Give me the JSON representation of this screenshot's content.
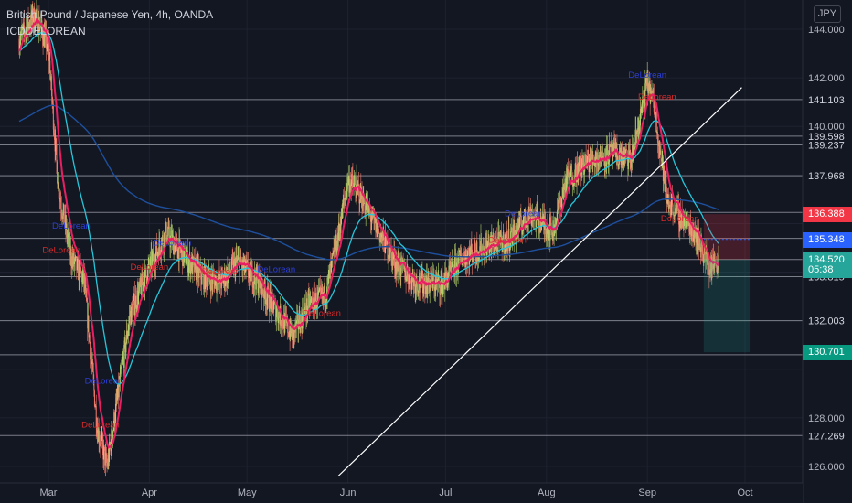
{
  "header": {
    "title": "British Pound / Japanese Yen, 4h, OANDA",
    "indicator": "ICDDELOREAN"
  },
  "currency": "JPY",
  "colors": {
    "background": "#131722",
    "grid": "#1e2230",
    "hline": "#9598a1",
    "trendline": "#ffffff",
    "ema_fast": "#e91e63",
    "ema_mid": "#26c6da",
    "ema_slow": "#1e4f9c",
    "candle_up": "#b4d26a",
    "candle_down": "#ef7a6a",
    "label_buy": "#2e3fd6",
    "label_sell": "#d62b2b"
  },
  "chart_data": {
    "type": "candlestick",
    "symbol": "GBPJPY",
    "timeframe": "4h",
    "x_ticks": [
      "Mar",
      "Apr",
      "May",
      "Jun",
      "Jul",
      "Aug",
      "Sep",
      "Oct"
    ],
    "y_ticks": [
      "144.000",
      "142.000",
      "140.000",
      "128.000",
      "126.000"
    ],
    "ylim": [
      125.6,
      145.0
    ],
    "price_path": [
      [
        "Feb 20",
        143.6
      ],
      [
        "Feb 25",
        144.6
      ],
      [
        "Mar 1",
        143.2
      ],
      [
        "Mar 4",
        137.5
      ],
      [
        "Mar 8",
        134.6
      ],
      [
        "Mar 12",
        133.6
      ],
      [
        "Mar 16",
        127.6
      ],
      [
        "Mar 19",
        126.0
      ],
      [
        "Mar 22",
        128.6
      ],
      [
        "Mar 26",
        132.2
      ],
      [
        "Apr 1",
        134.2
      ],
      [
        "Apr 6",
        135.6
      ],
      [
        "Apr 12",
        134.6
      ],
      [
        "Apr 17",
        133.8
      ],
      [
        "Apr 23",
        133.6
      ],
      [
        "Apr 28",
        134.4
      ],
      [
        "May 4",
        133.7
      ],
      [
        "May 10",
        132.4
      ],
      [
        "May 15",
        131.4
      ],
      [
        "May 20",
        132.7
      ],
      [
        "May 25",
        133.0
      ],
      [
        "May 29",
        135.5
      ],
      [
        "Jun 1",
        137.8
      ],
      [
        "Jun 4",
        137.4
      ],
      [
        "Jun 9",
        136.0
      ],
      [
        "Jun 16",
        134.3
      ],
      [
        "Jun 22",
        133.6
      ],
      [
        "Jun 30",
        133.5
      ],
      [
        "Jul 6",
        134.6
      ],
      [
        "Jul 12",
        135.0
      ],
      [
        "Jul 20",
        135.3
      ],
      [
        "Jul 27",
        136.4
      ],
      [
        "Aug 3",
        135.7
      ],
      [
        "Aug 7",
        137.8
      ],
      [
        "Aug 14",
        138.6
      ],
      [
        "Aug 21",
        138.9
      ],
      [
        "Aug 27",
        138.6
      ],
      [
        "Sep 1",
        141.8
      ],
      [
        "Sep 3",
        140.9
      ],
      [
        "Sep 7",
        137.0
      ],
      [
        "Sep 11",
        136.3
      ],
      [
        "Sep 16",
        135.6
      ],
      [
        "Sep 20",
        134.2
      ],
      [
        "Sep 23",
        134.52
      ]
    ],
    "horizontal_levels": [
      {
        "price": 141.103,
        "label": "141.103"
      },
      {
        "price": 139.598,
        "label": "139.598"
      },
      {
        "price": 139.237,
        "label": "139.237"
      },
      {
        "price": 137.968,
        "label": "137.968"
      },
      {
        "price": 136.46,
        "label": "136.460"
      },
      {
        "price": 135.393,
        "label": "135.393"
      },
      {
        "price": 134.52,
        "label": "134.520"
      },
      {
        "price": 133.815,
        "label": "133.815"
      },
      {
        "price": 132.003,
        "label": "132.003"
      },
      {
        "price": 130.6,
        "label": "130.600"
      },
      {
        "price": 127.269,
        "label": "127.269"
      }
    ],
    "price_labels": [
      {
        "price": 136.388,
        "text": "136.388",
        "color": "#f23645"
      },
      {
        "price": 135.348,
        "text": "135.348",
        "color": "#2962ff"
      },
      {
        "price": 134.52,
        "text": "134.520",
        "color": "#26a69a"
      },
      {
        "price": 134.1,
        "text": "05:38",
        "color": "#26a69a"
      },
      {
        "price": 130.701,
        "text": "130.701",
        "color": "#089981"
      }
    ],
    "trendline": [
      [
        "May 29",
        125.6
      ],
      [
        "Sep 30",
        141.6
      ]
    ],
    "position_box": {
      "entry": 134.52,
      "target": 130.701,
      "stop": 136.388,
      "from": "Sep 20",
      "to": "Sep 24"
    },
    "signals": [
      {
        "date": "Mar 8",
        "price": 135.8,
        "type": "Buy",
        "text": "DeLorean"
      },
      {
        "date": "Mar 5",
        "price": 134.8,
        "type": "Sell",
        "text": "DeLorean"
      },
      {
        "date": "Mar 18",
        "price": 129.4,
        "type": "Buy",
        "text": "DeLorean"
      },
      {
        "date": "Mar 17",
        "price": 127.6,
        "type": "Sell",
        "text": "DeLorean"
      },
      {
        "date": "Apr 8",
        "price": 135.1,
        "type": "Buy",
        "text": "DeLorean"
      },
      {
        "date": "Apr 1",
        "price": 134.1,
        "type": "Sell",
        "text": "DeLorean"
      },
      {
        "date": "Apr 23",
        "price": 133.9,
        "type": "Sell",
        "text": "DeLorean"
      },
      {
        "date": "May 10",
        "price": 134.0,
        "type": "Buy",
        "text": "DeLorean"
      },
      {
        "date": "May 24",
        "price": 132.2,
        "type": "Sell",
        "text": "DeLorean"
      },
      {
        "date": "Jul 25",
        "price": 136.3,
        "type": "Buy",
        "text": "DeLorean"
      },
      {
        "date": "Jul 20",
        "price": 135.2,
        "type": "Sell",
        "text": "DeLorean"
      },
      {
        "date": "Sep 1",
        "price": 142.0,
        "type": "Buy",
        "text": "DeLorean"
      },
      {
        "date": "Sep 4",
        "price": 141.1,
        "type": "Sell",
        "text": "DeLorean"
      },
      {
        "date": "Sep 11",
        "price": 136.1,
        "type": "Sell",
        "text": "DeLorean"
      }
    ]
  }
}
